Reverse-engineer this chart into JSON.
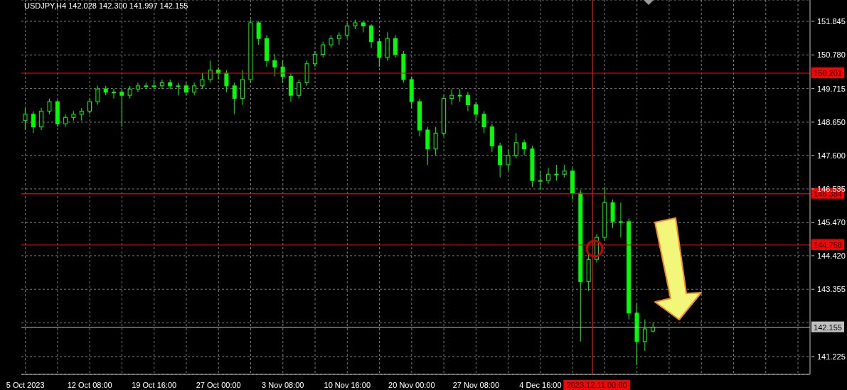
{
  "chart_data": {
    "type": "candlestick",
    "title": "USDJPY,H4  142.028 142.300 141.997 142.155",
    "color": "#00ff00",
    "categories": [
      "5 Oct 2023",
      null,
      null,
      null,
      null,
      null,
      null,
      null,
      "12 Oct 08:00",
      null,
      null,
      null,
      null,
      null,
      null,
      null,
      "19 Oct 16:00",
      null,
      null,
      null,
      null,
      null,
      null,
      null,
      "27 Oct 00:00",
      null,
      null,
      null,
      null,
      null,
      null,
      null,
      "3 Nov 08:00",
      null,
      null,
      null,
      null,
      null,
      null,
      null,
      "10 Nov 16:00",
      null,
      null,
      null,
      null,
      null,
      null,
      null,
      "20 Nov 00:00",
      null,
      null,
      null,
      null,
      null,
      null,
      null,
      "27 Nov 08:00",
      null,
      null,
      null,
      null,
      null,
      null,
      null,
      "4 Dec 16:00",
      null,
      null,
      null,
      null,
      null,
      null,
      "2023.12.11 00:00",
      null,
      null,
      null,
      null,
      null,
      null,
      null,
      null,
      null,
      null,
      null,
      null,
      null,
      null,
      null,
      null,
      null,
      null,
      null,
      null,
      null,
      null,
      null,
      null,
      null,
      null
    ],
    "ohlc": [
      [
        148.7,
        149.1,
        148.4,
        148.9
      ],
      [
        148.9,
        149.0,
        148.3,
        148.5
      ],
      [
        148.5,
        149.1,
        148.4,
        149.0
      ],
      [
        149.0,
        149.4,
        148.9,
        149.3
      ],
      [
        149.3,
        149.35,
        148.5,
        148.6
      ],
      [
        148.6,
        148.9,
        148.5,
        148.8
      ],
      [
        148.8,
        149.0,
        148.7,
        148.9
      ],
      [
        148.9,
        149.1,
        148.7,
        149.0
      ],
      [
        149.0,
        149.4,
        148.9,
        149.3
      ],
      [
        149.3,
        149.8,
        149.2,
        149.7
      ],
      [
        149.7,
        149.8,
        149.5,
        149.6
      ],
      [
        149.6,
        149.7,
        149.4,
        149.6
      ],
      [
        149.6,
        149.7,
        148.5,
        149.5
      ],
      [
        149.5,
        149.8,
        149.4,
        149.7
      ],
      [
        149.7,
        149.9,
        149.6,
        149.8
      ],
      [
        149.8,
        149.9,
        149.7,
        149.8
      ],
      [
        149.8,
        150.0,
        149.7,
        149.8
      ],
      [
        149.8,
        150.0,
        149.7,
        149.9
      ],
      [
        149.9,
        150.0,
        149.7,
        149.8
      ],
      [
        149.8,
        149.9,
        149.5,
        149.8
      ],
      [
        149.8,
        149.9,
        149.5,
        149.6
      ],
      [
        149.6,
        149.9,
        149.5,
        149.8
      ],
      [
        149.8,
        150.2,
        149.7,
        150.0
      ],
      [
        150.0,
        150.6,
        149.9,
        150.3
      ],
      [
        150.3,
        150.4,
        150.0,
        150.2
      ],
      [
        150.2,
        150.3,
        149.6,
        149.8
      ],
      [
        149.8,
        149.9,
        148.9,
        149.4
      ],
      [
        149.4,
        150.3,
        149.2,
        150.0
      ],
      [
        150.0,
        151.9,
        149.9,
        151.8
      ],
      [
        151.8,
        151.85,
        151.1,
        151.3
      ],
      [
        151.3,
        151.4,
        150.4,
        150.6
      ],
      [
        150.6,
        150.8,
        150.1,
        150.4
      ],
      [
        150.4,
        150.6,
        149.9,
        150.1
      ],
      [
        150.1,
        150.2,
        149.3,
        149.5
      ],
      [
        149.5,
        150.0,
        149.4,
        149.9
      ],
      [
        149.9,
        150.6,
        149.8,
        150.5
      ],
      [
        150.5,
        150.9,
        150.4,
        150.8
      ],
      [
        150.8,
        151.2,
        150.7,
        151.1
      ],
      [
        151.1,
        151.4,
        151.0,
        151.3
      ],
      [
        151.3,
        151.5,
        151.1,
        151.4
      ],
      [
        151.4,
        151.8,
        151.3,
        151.7
      ],
      [
        151.7,
        151.9,
        151.6,
        151.8
      ],
      [
        151.8,
        151.85,
        151.5,
        151.7
      ],
      [
        151.7,
        151.75,
        151.0,
        151.2
      ],
      [
        151.2,
        151.3,
        150.4,
        150.7
      ],
      [
        150.7,
        151.5,
        150.6,
        151.3
      ],
      [
        151.3,
        151.4,
        150.7,
        150.8
      ],
      [
        150.8,
        150.9,
        149.9,
        150.0
      ],
      [
        150.0,
        150.1,
        149.1,
        149.3
      ],
      [
        149.3,
        149.4,
        148.2,
        148.4
      ],
      [
        148.4,
        148.5,
        147.3,
        147.8
      ],
      [
        147.8,
        148.5,
        147.6,
        148.3
      ],
      [
        148.3,
        149.5,
        148.2,
        149.4
      ],
      [
        149.4,
        149.7,
        149.2,
        149.5
      ],
      [
        149.5,
        149.7,
        149.3,
        149.5
      ],
      [
        149.5,
        149.6,
        149.0,
        149.2
      ],
      [
        149.2,
        149.3,
        148.7,
        148.9
      ],
      [
        148.9,
        149.0,
        148.3,
        148.5
      ],
      [
        148.5,
        148.6,
        147.7,
        147.9
      ],
      [
        147.9,
        148.0,
        146.9,
        147.3
      ],
      [
        147.3,
        147.8,
        147.1,
        147.6
      ],
      [
        147.6,
        148.3,
        147.5,
        148.0
      ],
      [
        148.0,
        148.1,
        147.6,
        147.8
      ],
      [
        147.8,
        147.9,
        146.6,
        146.8
      ],
      [
        146.8,
        147.1,
        146.5,
        146.8
      ],
      [
        146.8,
        147.2,
        146.7,
        147.0
      ],
      [
        147.0,
        147.3,
        146.8,
        147.0
      ],
      [
        147.0,
        147.3,
        146.9,
        147.1
      ],
      [
        147.1,
        147.2,
        146.2,
        146.4
      ],
      [
        146.4,
        146.5,
        141.7,
        143.6
      ],
      [
        143.6,
        144.5,
        143.3,
        144.3
      ],
      [
        144.3,
        145.1,
        144.2,
        145.0
      ],
      [
        145.0,
        146.6,
        144.9,
        146.1
      ],
      [
        146.1,
        146.2,
        145.3,
        145.5
      ],
      [
        145.5,
        146.1,
        145.0,
        145.5
      ],
      [
        145.5,
        145.6,
        142.4,
        142.6
      ],
      [
        142.6,
        142.9,
        140.95,
        141.7
      ],
      [
        141.7,
        142.4,
        141.4,
        142.1
      ],
      [
        142.028,
        142.3,
        141.997,
        142.155
      ],
      null,
      null,
      null,
      null,
      null,
      null,
      null,
      null,
      null,
      null,
      null,
      null,
      null,
      null,
      null,
      null,
      null,
      null,
      null
    ],
    "ylim": [
      140.66,
      152.52
    ],
    "yticks": [
      141.225,
      {
        "value": 142.29,
        "label": null
      },
      143.355,
      {
        "value": 144.42,
        "label": "144.420"
      },
      {
        "value": 145.47,
        "label": "145.470"
      },
      146.535,
      {
        "value": 147.6,
        "label": "147.600"
      },
      {
        "value": 148.65,
        "label": "148.650"
      },
      149.715,
      {
        "value": 150.78,
        "label": "150.780"
      },
      151.845
    ],
    "grid": true,
    "ref_lines": [
      {
        "axis": "y",
        "value": 150.201,
        "label": "150.201",
        "color": "#ff0000"
      },
      {
        "axis": "y",
        "value": 146.384,
        "label": "146.384",
        "color": "#ff0000"
      },
      {
        "axis": "y",
        "value": 144.758,
        "label": "144.758",
        "color": "#ff0000"
      },
      {
        "axis": "y",
        "value": 142.155,
        "label": "142.155",
        "color": "#c0c0c0"
      },
      {
        "axis": "x",
        "value": "2023.12.11 00:00",
        "color": "#ff0000"
      }
    ]
  }
}
